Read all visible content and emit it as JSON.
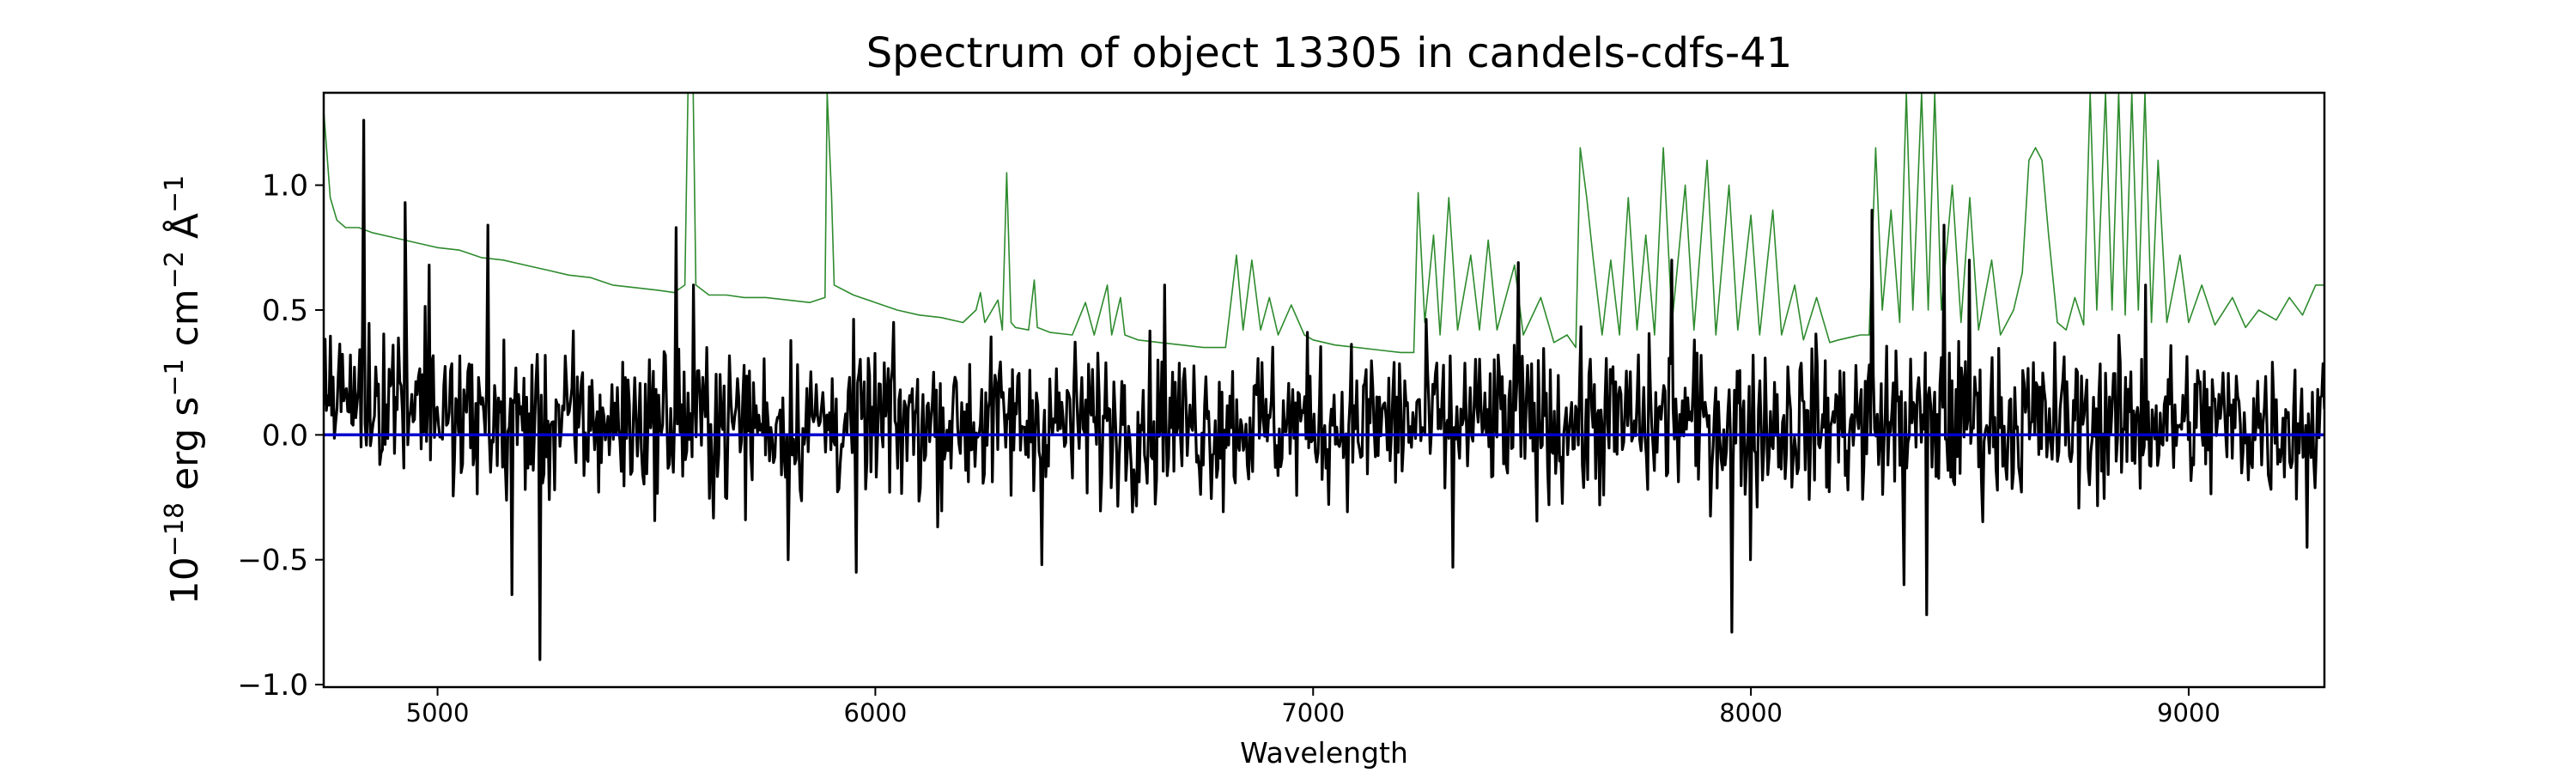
{
  "chart_data": {
    "type": "line",
    "title": "Spectrum of object 13305 in candels-cdfs-41",
    "xlabel": "Wavelength",
    "ylabel_parts": [
      "10",
      "−18",
      " erg s",
      "−1",
      " cm",
      "−2",
      " Å",
      "−1"
    ],
    "xlim": [
      4740,
      9310
    ],
    "ylim": [
      -1.01,
      1.37
    ],
    "xticks": [
      5000,
      6000,
      7000,
      8000,
      9000
    ],
    "xtick_labels": [
      "5000",
      "6000",
      "7000",
      "8000",
      "9000"
    ],
    "yticks": [
      -1.0,
      -0.5,
      0.0,
      0.5,
      1.0
    ],
    "ytick_labels": [
      "−1.0",
      "−0.5",
      "0.0",
      "0.5",
      "1.0"
    ],
    "grid": false,
    "legend": "none",
    "series": [
      {
        "id": "error",
        "color": "#2e8b2e",
        "points": [
          [
            4740,
            1.3
          ],
          [
            4755,
            0.95
          ],
          [
            4770,
            0.86
          ],
          [
            4790,
            0.83
          ],
          [
            4820,
            0.83
          ],
          [
            4850,
            0.81
          ],
          [
            4900,
            0.79
          ],
          [
            4950,
            0.77
          ],
          [
            5000,
            0.75
          ],
          [
            5050,
            0.74
          ],
          [
            5100,
            0.71
          ],
          [
            5150,
            0.7
          ],
          [
            5200,
            0.68
          ],
          [
            5250,
            0.66
          ],
          [
            5300,
            0.64
          ],
          [
            5350,
            0.63
          ],
          [
            5400,
            0.6
          ],
          [
            5450,
            0.59
          ],
          [
            5500,
            0.58
          ],
          [
            5540,
            0.57
          ],
          [
            5565,
            0.6
          ],
          [
            5572,
            1.37
          ],
          [
            5584,
            1.37
          ],
          [
            5590,
            0.6
          ],
          [
            5620,
            0.56
          ],
          [
            5660,
            0.56
          ],
          [
            5700,
            0.55
          ],
          [
            5750,
            0.55
          ],
          [
            5800,
            0.54
          ],
          [
            5850,
            0.53
          ],
          [
            5885,
            0.55
          ],
          [
            5890,
            1.37
          ],
          [
            5900,
            0.96
          ],
          [
            5906,
            0.6
          ],
          [
            5950,
            0.56
          ],
          [
            6000,
            0.53
          ],
          [
            6050,
            0.5
          ],
          [
            6100,
            0.48
          ],
          [
            6150,
            0.47
          ],
          [
            6200,
            0.45
          ],
          [
            6230,
            0.5
          ],
          [
            6240,
            0.57
          ],
          [
            6250,
            0.45
          ],
          [
            6280,
            0.54
          ],
          [
            6290,
            0.42
          ],
          [
            6300,
            1.05
          ],
          [
            6310,
            0.45
          ],
          [
            6320,
            0.43
          ],
          [
            6350,
            0.42
          ],
          [
            6363,
            0.62
          ],
          [
            6370,
            0.43
          ],
          [
            6400,
            0.41
          ],
          [
            6450,
            0.4
          ],
          [
            6480,
            0.53
          ],
          [
            6500,
            0.4
          ],
          [
            6530,
            0.6
          ],
          [
            6540,
            0.4
          ],
          [
            6560,
            0.55
          ],
          [
            6570,
            0.4
          ],
          [
            6600,
            0.38
          ],
          [
            6650,
            0.37
          ],
          [
            6700,
            0.36
          ],
          [
            6750,
            0.35
          ],
          [
            6800,
            0.35
          ],
          [
            6825,
            0.72
          ],
          [
            6840,
            0.42
          ],
          [
            6860,
            0.7
          ],
          [
            6880,
            0.42
          ],
          [
            6900,
            0.55
          ],
          [
            6920,
            0.4
          ],
          [
            6950,
            0.52
          ],
          [
            6980,
            0.4
          ],
          [
            7000,
            0.38
          ],
          [
            7050,
            0.36
          ],
          [
            7100,
            0.35
          ],
          [
            7150,
            0.34
          ],
          [
            7200,
            0.33
          ],
          [
            7230,
            0.33
          ],
          [
            7240,
            0.97
          ],
          [
            7255,
            0.45
          ],
          [
            7275,
            0.8
          ],
          [
            7290,
            0.4
          ],
          [
            7310,
            0.95
          ],
          [
            7330,
            0.42
          ],
          [
            7360,
            0.72
          ],
          [
            7380,
            0.42
          ],
          [
            7400,
            0.78
          ],
          [
            7420,
            0.42
          ],
          [
            7460,
            0.68
          ],
          [
            7480,
            0.4
          ],
          [
            7520,
            0.55
          ],
          [
            7550,
            0.37
          ],
          [
            7580,
            0.4
          ],
          [
            7600,
            0.35
          ],
          [
            7610,
            1.15
          ],
          [
            7625,
            0.95
          ],
          [
            7640,
            0.7
          ],
          [
            7660,
            0.4
          ],
          [
            7680,
            0.7
          ],
          [
            7700,
            0.4
          ],
          [
            7720,
            0.95
          ],
          [
            7740,
            0.42
          ],
          [
            7760,
            0.8
          ],
          [
            7780,
            0.4
          ],
          [
            7800,
            1.15
          ],
          [
            7820,
            0.45
          ],
          [
            7850,
            1.0
          ],
          [
            7870,
            0.42
          ],
          [
            7900,
            1.1
          ],
          [
            7920,
            0.4
          ],
          [
            7950,
            1.0
          ],
          [
            7970,
            0.42
          ],
          [
            8000,
            0.88
          ],
          [
            8020,
            0.4
          ],
          [
            8050,
            0.9
          ],
          [
            8070,
            0.4
          ],
          [
            8100,
            0.6
          ],
          [
            8120,
            0.38
          ],
          [
            8150,
            0.55
          ],
          [
            8180,
            0.37
          ],
          [
            8200,
            0.38
          ],
          [
            8250,
            0.4
          ],
          [
            8270,
            0.4
          ],
          [
            8285,
            1.15
          ],
          [
            8300,
            0.5
          ],
          [
            8320,
            0.9
          ],
          [
            8340,
            0.45
          ],
          [
            8355,
            1.37
          ],
          [
            8370,
            0.5
          ],
          [
            8390,
            1.37
          ],
          [
            8405,
            0.5
          ],
          [
            8420,
            1.37
          ],
          [
            8435,
            0.5
          ],
          [
            8460,
            1.0
          ],
          [
            8480,
            0.45
          ],
          [
            8500,
            0.95
          ],
          [
            8520,
            0.42
          ],
          [
            8550,
            0.7
          ],
          [
            8570,
            0.4
          ],
          [
            8600,
            0.5
          ],
          [
            8620,
            0.65
          ],
          [
            8635,
            1.1
          ],
          [
            8650,
            1.15
          ],
          [
            8665,
            1.1
          ],
          [
            8680,
            0.8
          ],
          [
            8700,
            0.45
          ],
          [
            8720,
            0.42
          ],
          [
            8740,
            0.55
          ],
          [
            8760,
            0.44
          ],
          [
            8775,
            1.37
          ],
          [
            8790,
            0.5
          ],
          [
            8810,
            1.37
          ],
          [
            8825,
            0.5
          ],
          [
            8840,
            1.37
          ],
          [
            8855,
            0.48
          ],
          [
            8870,
            1.37
          ],
          [
            8885,
            0.5
          ],
          [
            8900,
            1.37
          ],
          [
            8915,
            0.45
          ],
          [
            8930,
            1.1
          ],
          [
            8950,
            0.45
          ],
          [
            8980,
            0.72
          ],
          [
            9000,
            0.45
          ],
          [
            9030,
            0.6
          ],
          [
            9060,
            0.44
          ],
          [
            9100,
            0.55
          ],
          [
            9130,
            0.43
          ],
          [
            9160,
            0.5
          ],
          [
            9200,
            0.46
          ],
          [
            9230,
            0.55
          ],
          [
            9260,
            0.48
          ],
          [
            9290,
            0.6
          ],
          [
            9310,
            0.6
          ]
        ]
      },
      {
        "id": "zero",
        "color": "#0000cc",
        "points": [
          [
            4740,
            0.0
          ],
          [
            9310,
            0.0
          ]
        ]
      },
      {
        "id": "flux",
        "color": "#000000",
        "noise_amplitude": 0.28,
        "n_points": 1500,
        "seed": 13305,
        "peaks": [
          [
            4830,
            1.26
          ],
          [
            4925,
            0.93
          ],
          [
            4980,
            0.68
          ],
          [
            5115,
            0.84
          ],
          [
            5235,
            -0.9
          ],
          [
            5170,
            -0.64
          ],
          [
            5545,
            0.83
          ],
          [
            5585,
            0.6
          ],
          [
            5800,
            -0.5
          ],
          [
            5955,
            -0.55
          ],
          [
            6380,
            -0.52
          ],
          [
            6660,
            0.6
          ],
          [
            7320,
            -0.53
          ],
          [
            7470,
            0.69
          ],
          [
            7820,
            0.7
          ],
          [
            7955,
            -0.79
          ],
          [
            8000,
            -0.5
          ],
          [
            8275,
            0.9
          ],
          [
            8350,
            -0.6
          ],
          [
            8400,
            -0.72
          ],
          [
            8440,
            0.84
          ],
          [
            8500,
            0.7
          ],
          [
            8900,
            0.6
          ],
          [
            9270,
            -0.45
          ]
        ]
      }
    ]
  }
}
